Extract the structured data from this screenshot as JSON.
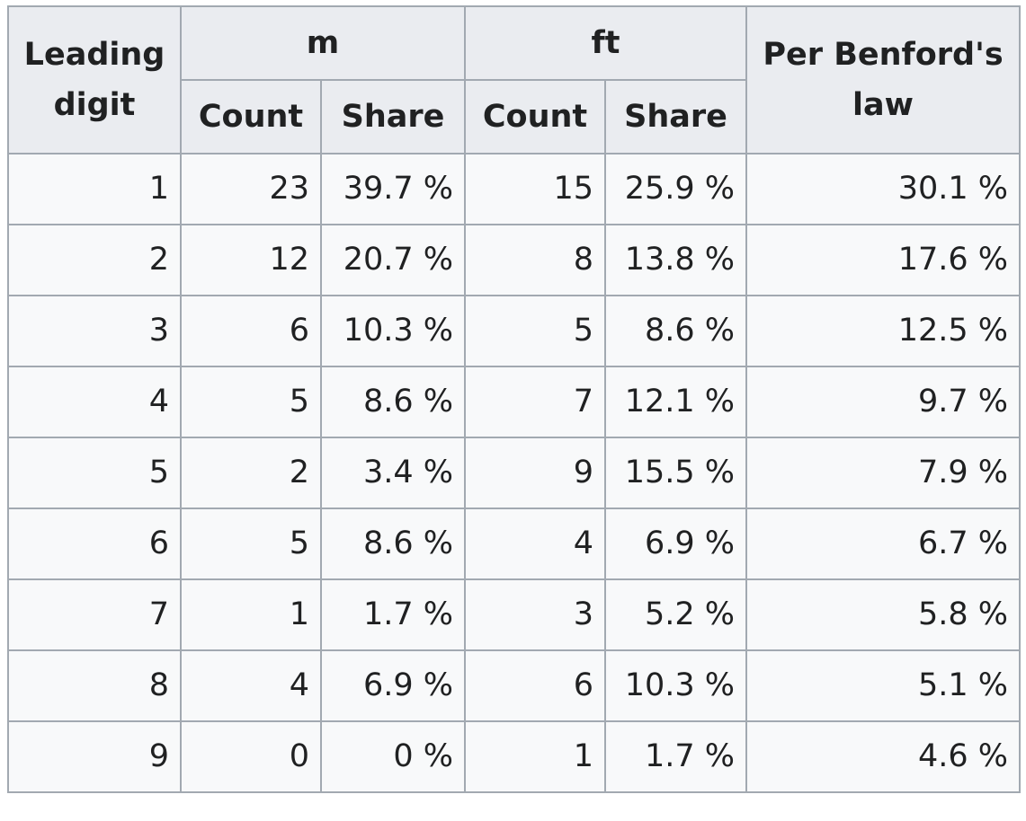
{
  "headers": {
    "leading_digit": "Leading digit",
    "m": "m",
    "ft": "ft",
    "benford": "Per Benford's law",
    "count": "Count",
    "share": "Share"
  },
  "rows": [
    {
      "digit": "1",
      "m_count": "23",
      "m_share": "39.7 %",
      "ft_count": "15",
      "ft_share": "25.9 %",
      "benford": "30.1 %"
    },
    {
      "digit": "2",
      "m_count": "12",
      "m_share": "20.7 %",
      "ft_count": "8",
      "ft_share": "13.8 %",
      "benford": "17.6 %"
    },
    {
      "digit": "3",
      "m_count": "6",
      "m_share": "10.3 %",
      "ft_count": "5",
      "ft_share": "8.6 %",
      "benford": "12.5 %"
    },
    {
      "digit": "4",
      "m_count": "5",
      "m_share": "8.6 %",
      "ft_count": "7",
      "ft_share": "12.1 %",
      "benford": "9.7 %"
    },
    {
      "digit": "5",
      "m_count": "2",
      "m_share": "3.4 %",
      "ft_count": "9",
      "ft_share": "15.5 %",
      "benford": "7.9 %"
    },
    {
      "digit": "6",
      "m_count": "5",
      "m_share": "8.6 %",
      "ft_count": "4",
      "ft_share": "6.9 %",
      "benford": "6.7 %"
    },
    {
      "digit": "7",
      "m_count": "1",
      "m_share": "1.7 %",
      "ft_count": "3",
      "ft_share": "5.2 %",
      "benford": "5.8 %"
    },
    {
      "digit": "8",
      "m_count": "4",
      "m_share": "6.9 %",
      "ft_count": "6",
      "ft_share": "10.3 %",
      "benford": "5.1 %"
    },
    {
      "digit": "9",
      "m_count": "0",
      "m_share": "0 %",
      "ft_count": "1",
      "ft_share": "1.7 %",
      "benford": "4.6 %"
    }
  ]
}
